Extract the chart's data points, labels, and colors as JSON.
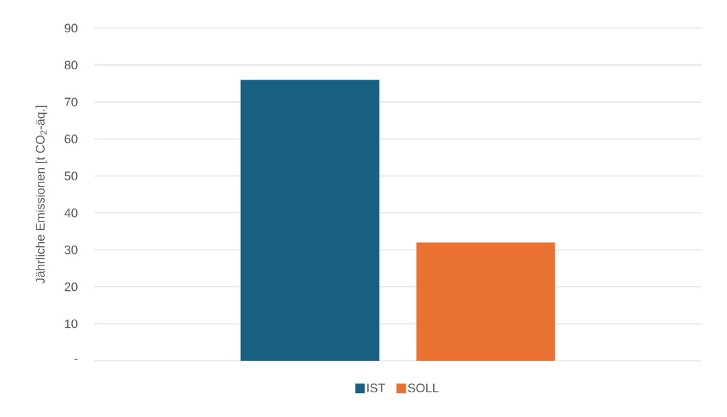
{
  "chart_data": {
    "type": "bar",
    "ylabel": "Jährliche Emissionen [t CO$_{2}$-äq.]",
    "categories": [
      null
    ],
    "series": [
      {
        "name": "IST",
        "color": "#17607f",
        "values": [
          76
        ]
      },
      {
        "name": "SOLL",
        "color": "#e97132",
        "values": [
          32
        ]
      }
    ],
    "ylim": [
      0,
      90
    ],
    "yticks": [
      {
        "value": 0,
        "label": "-"
      },
      10,
      20,
      30,
      40,
      50,
      60,
      70,
      80,
      90
    ],
    "grid": "y",
    "legend": "bottom"
  }
}
